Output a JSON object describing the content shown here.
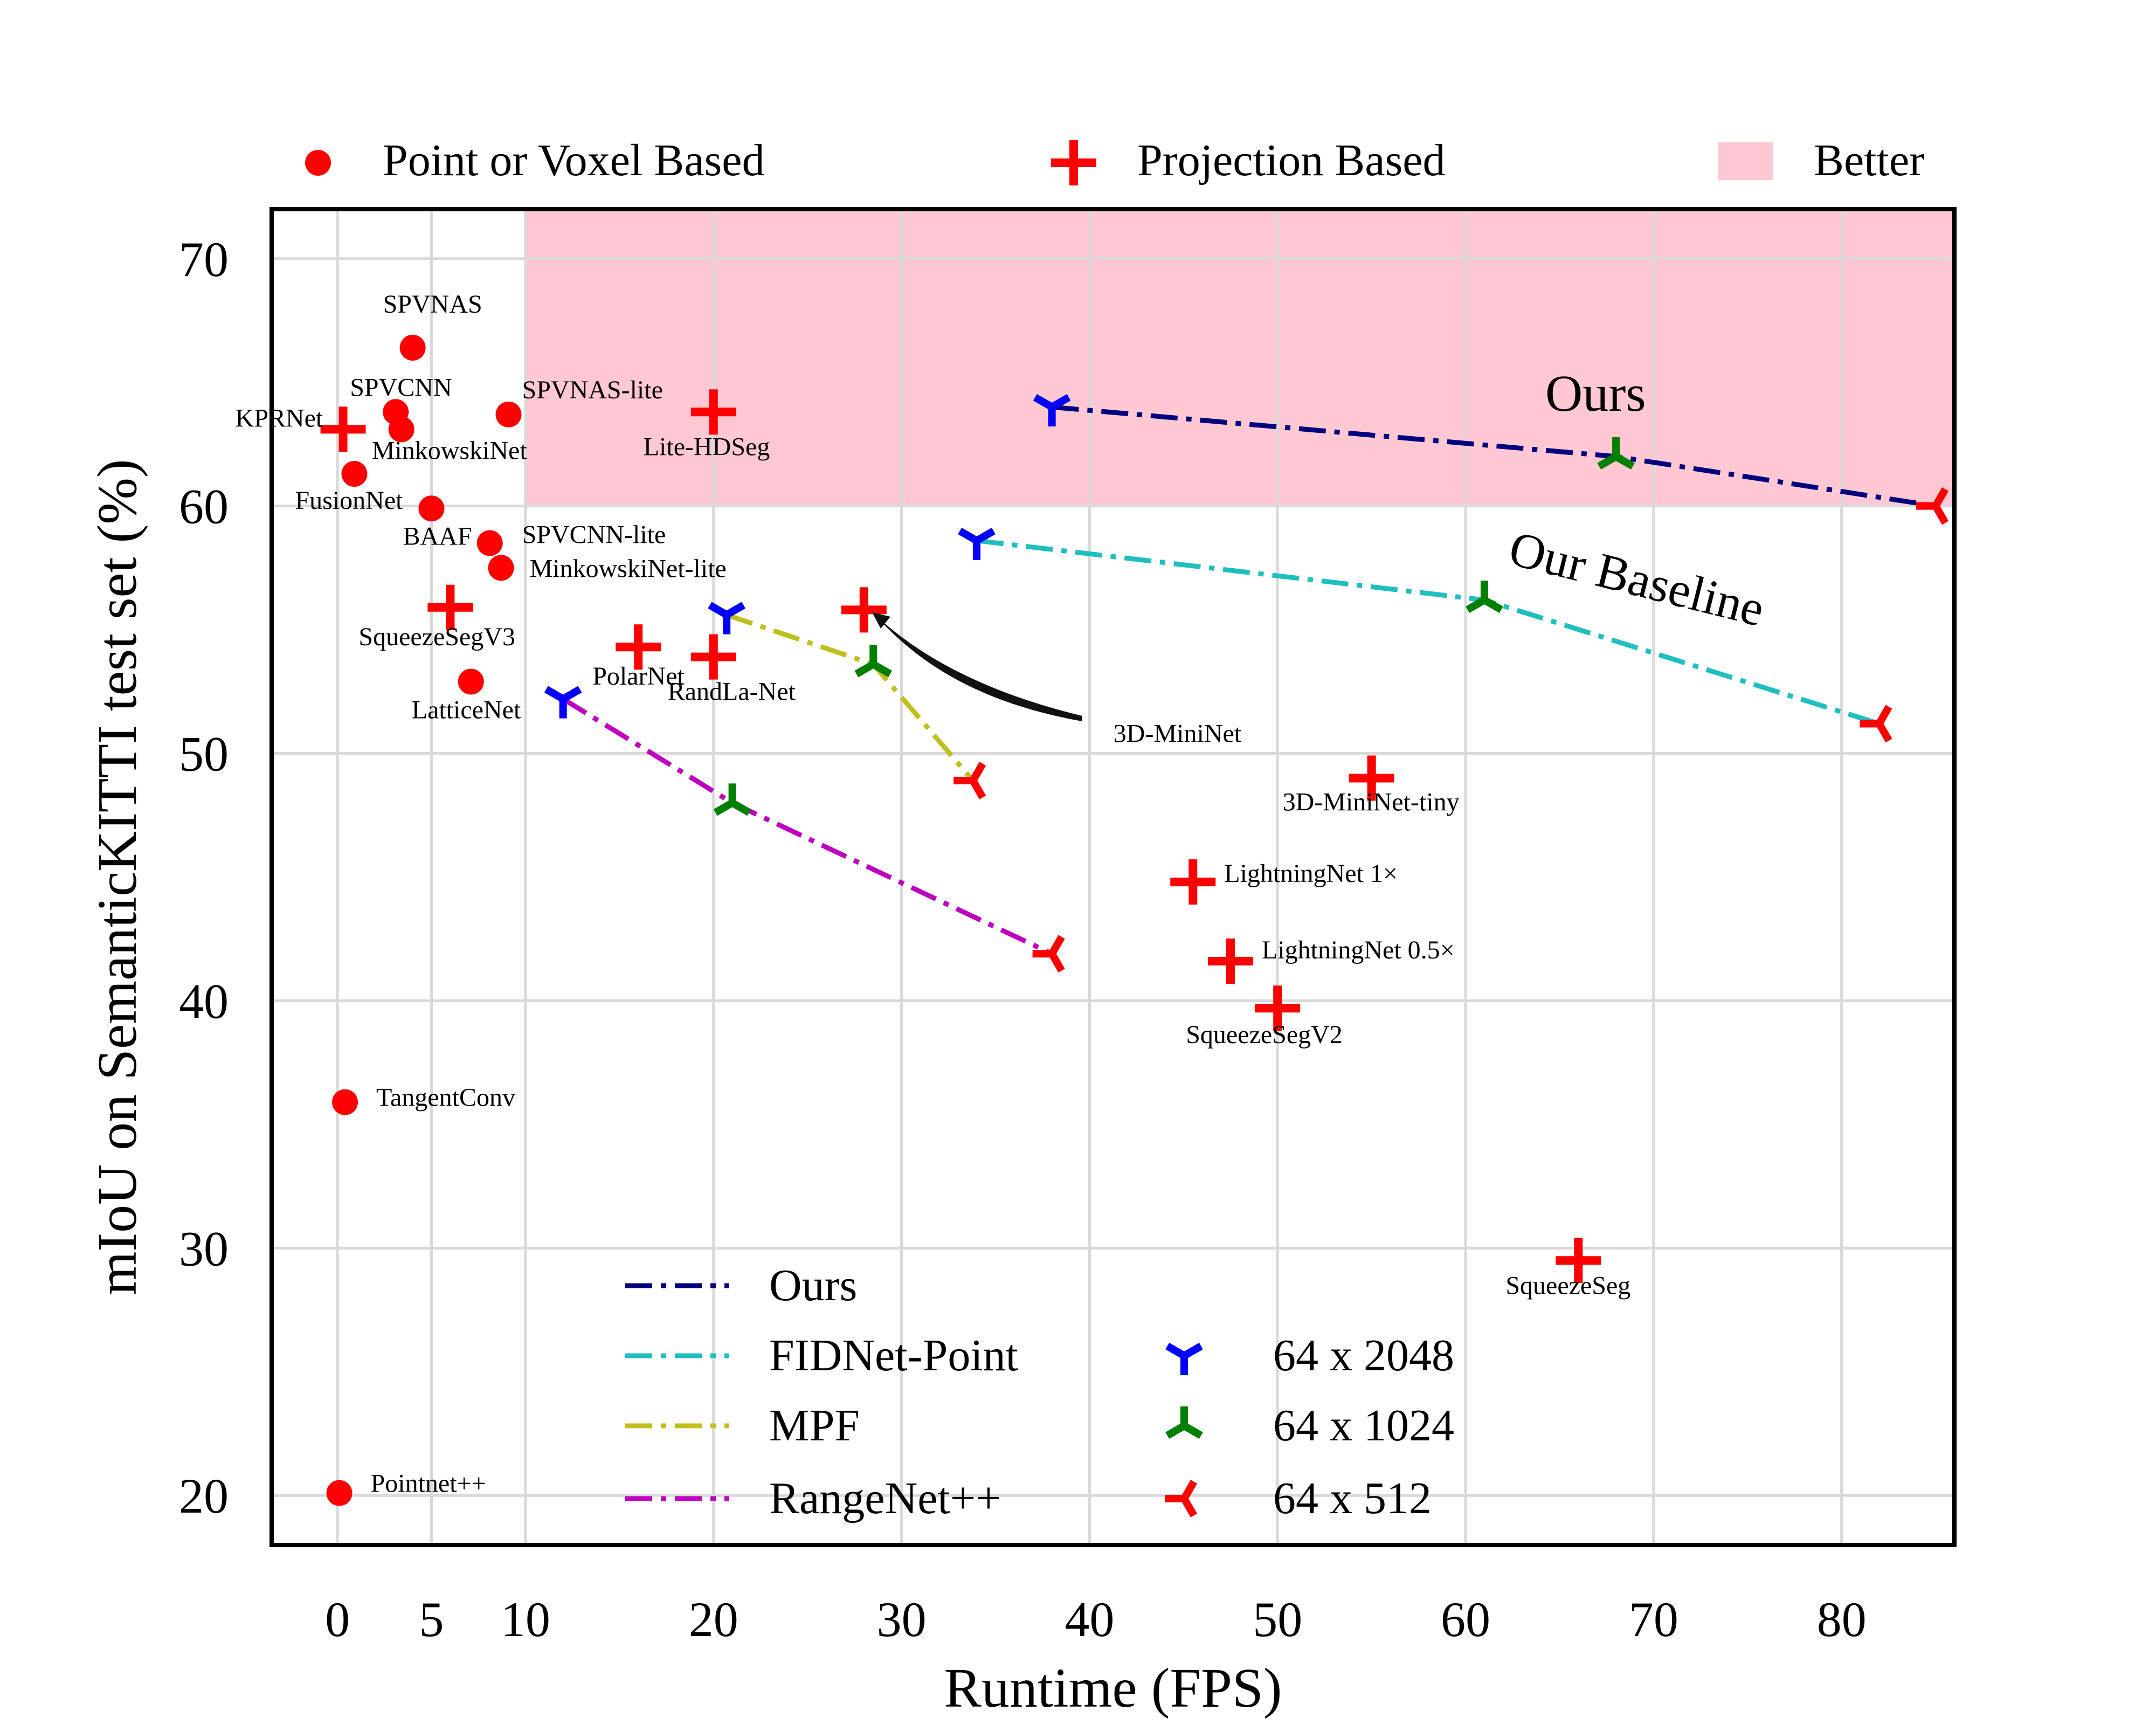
{
  "chart_data": {
    "type": "scatter",
    "xlabel": "Runtime (FPS)",
    "ylabel": "mIoU on SemanticKITTI test set (%)",
    "xlim": [
      -3.5,
      86
    ],
    "ylim": [
      18,
      72
    ],
    "x_ticks": [
      0,
      5,
      10,
      20,
      30,
      40,
      50,
      60,
      70,
      80
    ],
    "y_ticks": [
      20,
      30,
      40,
      50,
      60,
      70
    ],
    "grid": true,
    "better_region": {
      "x": [
        10,
        86
      ],
      "y": [
        60,
        72
      ],
      "color": "#ffc8d2"
    },
    "colors": {
      "point": "#ff0000",
      "ours": "#00007f",
      "fidnet": "#1fbfbf",
      "mpf": "#bfbf1f",
      "rangenet": "#bf00bf",
      "res2048": "#0000ff",
      "res1024": "#007f00",
      "res512": "#ff0000"
    },
    "top_legend": [
      {
        "marker": "circle",
        "label": "Point or Voxel Based"
      },
      {
        "marker": "plus",
        "label": "Projection Based"
      },
      {
        "marker": "patch",
        "label": "Better"
      }
    ],
    "point_based": [
      {
        "label": "SPVNAS",
        "x": 4,
        "y": 66.4
      },
      {
        "label": "SPVCNN",
        "x": 3.1,
        "y": 63.8
      },
      {
        "label": "MinkowskiNet",
        "x": 3.4,
        "y": 63.1
      },
      {
        "label": "SPVNAS-lite",
        "x": 9.1,
        "y": 63.7
      },
      {
        "label": "FusionNet",
        "x": 0.9,
        "y": 61.3
      },
      {
        "label": "BAAF",
        "x": 5,
        "y": 59.9
      },
      {
        "label": "SPVCNN-lite",
        "x": 8.1,
        "y": 58.5
      },
      {
        "label": "MinkowskiNet-lite",
        "x": 8.7,
        "y": 57.5
      },
      {
        "label": "LatticeNet",
        "x": 7.1,
        "y": 52.9
      },
      {
        "label": "TangentConv",
        "x": 0.4,
        "y": 35.9
      },
      {
        "label": "Pointnet++",
        "x": 0.1,
        "y": 20.1
      }
    ],
    "projection_based": [
      {
        "label": "KPRNet",
        "x": 0.3,
        "y": 63.1
      },
      {
        "label": "Lite-HDSeg",
        "x": 20,
        "y": 63.8
      },
      {
        "label": "SqueezeSegV3",
        "x": 6,
        "y": 55.9
      },
      {
        "label": "PolarNet",
        "x": 16,
        "y": 54.3
      },
      {
        "label": "RandLa-Net",
        "x": 20,
        "y": 53.9
      },
      {
        "label": "3D-MiniNet",
        "x": 28,
        "y": 55.8
      },
      {
        "label": "3D-MiniNet-tiny",
        "x": 55,
        "y": 49
      },
      {
        "label": "LightningNet 1×",
        "x": 45.5,
        "y": 44.8
      },
      {
        "label": "LightningNet 0.5×",
        "x": 47.5,
        "y": 41.6
      },
      {
        "label": "SqueezeSegV2",
        "x": 50,
        "y": 39.7
      },
      {
        "label": "SqueezeSeg",
        "x": 66,
        "y": 29.5
      }
    ],
    "series": [
      {
        "name": "Ours",
        "x": [
          38,
          68,
          85
        ],
        "y": [
          64,
          62,
          60
        ]
      },
      {
        "name": "FIDNet-Point",
        "x": [
          34,
          61,
          82
        ],
        "y": [
          58.6,
          56.2,
          51.2
        ]
      },
      {
        "name": "MPF",
        "x": [
          20.7,
          28.5,
          33.8
        ],
        "y": [
          55.6,
          53.6,
          48.9
        ]
      },
      {
        "name": "RangeNet++",
        "x": [
          12,
          21,
          38
        ],
        "y": [
          52.2,
          48,
          41.9
        ]
      }
    ],
    "resolution_legend": [
      "64 x 2048",
      "64 x 1024",
      "64 x 512"
    ],
    "annotations": {
      "ours": "Ours",
      "baseline": "Our Baseline"
    }
  }
}
